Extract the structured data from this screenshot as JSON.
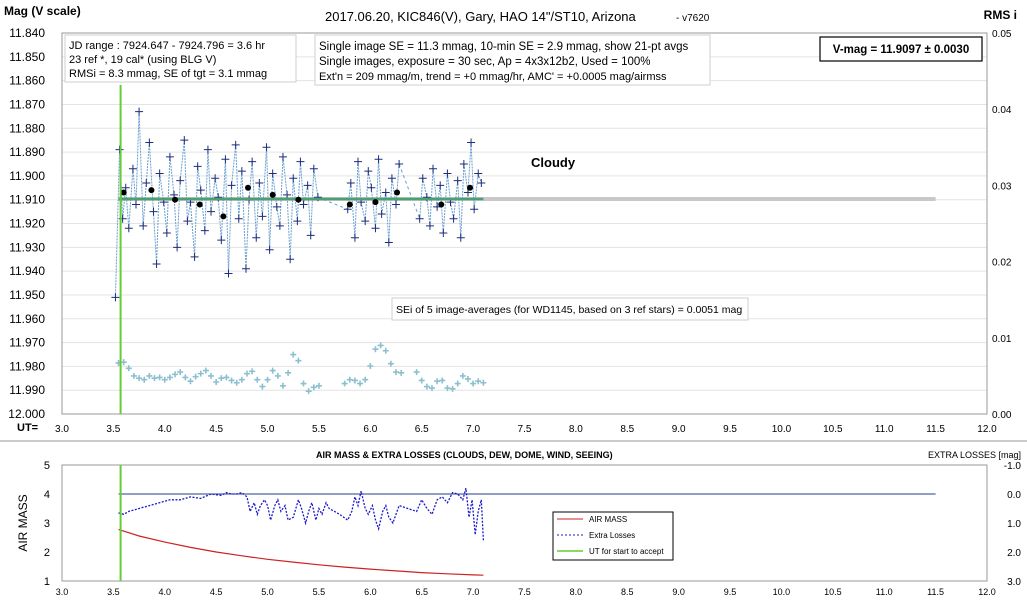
{
  "colors": {
    "grid": "#e3e3e3",
    "mag": "#1f2d7a",
    "avg": "#000000",
    "rms": "#8cc0d0",
    "mean_line": "#4aa070",
    "ref_line": "#c8c8c8",
    "airmass": "#cc2222",
    "losses": "#1a1acc",
    "accept": "#66cc33",
    "zero_line": "#1f3f8f"
  },
  "top": {
    "title": "2017.06.20,  KIC846(V),  Gary,  HAO 14\"/ST10, Arizona",
    "version": "- v7620",
    "y_title": "Mag (V scale)",
    "y2_title": "RMS i",
    "ut_label": "UT=",
    "x_ticks": [
      "3.0",
      "3.5",
      "4.0",
      "4.5",
      "5.0",
      "5.5",
      "6.0",
      "6.5",
      "7.0",
      "7.5",
      "8.0",
      "8.5",
      "9.0",
      "9.5",
      "10.0",
      "10.5",
      "11.0",
      "11.5",
      "12.0"
    ],
    "y_ticks": [
      "11.840",
      "11.850",
      "11.860",
      "11.870",
      "11.880",
      "11.890",
      "11.900",
      "11.910",
      "11.920",
      "11.930",
      "11.940",
      "11.950",
      "11.960",
      "11.970",
      "11.980",
      "11.990",
      "12.000"
    ],
    "y2_ticks": [
      "0.05",
      "0.04",
      "0.03",
      "0.02",
      "0.01",
      "0.00"
    ],
    "box1": [
      "JD range : 7924.647 - 7924.796 = 3.6 hr",
      "23 ref *, 19 cal* (using BLG V)",
      "RMSi = 8.3 mmag, SE of tgt = 3.1 mmag"
    ],
    "box2": [
      "Single image SE = 11.3 mmag, 10-min SE = 2.9 mmag, show  21-pt avgs",
      "Single images, exposure = 30 sec, Ap = 4x3x12b2, Used = 100%",
      "Ext'n = 209 mmag/m, trend = +0 mmag/hr, AMC' = +0.0005 mag/airmss"
    ],
    "vmag": "V-mag = 11.9097 ± 0.0030",
    "cloudy": "Cloudy",
    "sei": "SEi of 5 image-averages (for WD1145, based on 3 ref stars) = 0.0051 mag"
  },
  "bottom": {
    "title": "AIR MASS & EXTRA LOSSES (CLOUDS, DEW, DOME, WIND, SEEING)",
    "y_title": "AIR MASS",
    "y2_title": "EXTRA LOSSES [mag]",
    "x_ticks": [
      "3.0",
      "3.5",
      "4.0",
      "4.5",
      "5.0",
      "5.5",
      "6.0",
      "6.5",
      "7.0",
      "7.5",
      "8.0",
      "8.5",
      "9.0",
      "9.5",
      "10.0",
      "10.5",
      "11.0",
      "11.5",
      "12.0"
    ],
    "y_ticks": [
      "5",
      "4",
      "3",
      "2",
      "1"
    ],
    "y2_ticks": [
      "-1.0",
      "0.0",
      "1.0",
      "2.0",
      "3.0"
    ],
    "legend": [
      "AIR MASS",
      "Extra Losses",
      "UT for start to accept"
    ]
  },
  "chart_data": [
    {
      "type": "scatter",
      "title": "2017.06.20,  KIC846(V),  Gary,  HAO 14\"/ST10, Arizona",
      "xlabel": "UT=",
      "ylabel": "Mag (V scale)",
      "y2label": "RMS i",
      "xlim": [
        3.0,
        12.0
      ],
      "ylim": [
        12.0,
        11.84
      ],
      "y2lim": [
        0.0,
        0.05
      ],
      "mean_mag": 11.9097,
      "mean_line_x": [
        3.55,
        7.1
      ],
      "ref_line_x": [
        3.55,
        11.5
      ],
      "accept_ut": 3.57,
      "gaps": [
        [
          5.5,
          5.75
        ],
        [
          6.3,
          6.45
        ]
      ],
      "series": [
        {
          "name": "single images",
          "x": [
            3.52,
            3.56,
            3.59,
            3.62,
            3.65,
            3.69,
            3.72,
            3.75,
            3.79,
            3.82,
            3.85,
            3.89,
            3.92,
            3.95,
            3.99,
            4.02,
            4.05,
            4.09,
            4.12,
            4.15,
            4.19,
            4.22,
            4.25,
            4.29,
            4.32,
            4.35,
            4.39,
            4.42,
            4.45,
            4.49,
            4.52,
            4.55,
            4.59,
            4.62,
            4.65,
            4.69,
            4.72,
            4.75,
            4.79,
            4.82,
            4.85,
            4.89,
            4.92,
            4.95,
            4.99,
            5.02,
            5.05,
            5.09,
            5.12,
            5.15,
            5.19,
            5.22,
            5.25,
            5.29,
            5.32,
            5.35,
            5.39,
            5.42,
            5.45,
            5.49,
            5.78,
            5.81,
            5.85,
            5.88,
            5.91,
            5.95,
            5.98,
            6.01,
            6.05,
            6.08,
            6.11,
            6.15,
            6.18,
            6.21,
            6.25,
            6.28,
            6.48,
            6.51,
            6.55,
            6.58,
            6.61,
            6.65,
            6.68,
            6.71,
            6.75,
            6.78,
            6.81,
            6.85,
            6.88,
            6.91,
            6.95,
            6.98,
            7.01,
            7.05,
            7.08
          ],
          "y": [
            11.951,
            11.889,
            11.918,
            11.905,
            11.922,
            11.897,
            11.912,
            11.873,
            11.921,
            11.903,
            11.886,
            11.915,
            11.937,
            11.899,
            11.911,
            11.924,
            11.892,
            11.908,
            11.93,
            11.902,
            11.885,
            11.919,
            11.911,
            11.934,
            11.896,
            11.906,
            11.923,
            11.889,
            11.915,
            11.901,
            11.909,
            11.927,
            11.893,
            11.941,
            11.904,
            11.887,
            11.918,
            11.898,
            11.939,
            11.91,
            11.894,
            11.926,
            11.903,
            11.917,
            11.888,
            11.931,
            11.899,
            11.913,
            11.921,
            11.892,
            11.908,
            11.935,
            11.901,
            11.919,
            11.894,
            11.912,
            11.904,
            11.925,
            11.897,
            11.909,
            11.914,
            11.903,
            11.926,
            11.894,
            11.911,
            11.919,
            11.898,
            11.905,
            11.922,
            11.893,
            11.916,
            11.907,
            11.928,
            11.901,
            11.912,
            11.895,
            11.918,
            11.901,
            11.909,
            11.921,
            11.897,
            11.913,
            11.904,
            11.924,
            11.899,
            11.911,
            11.918,
            11.902,
            11.926,
            11.895,
            11.907,
            11.886,
            11.914,
            11.899,
            11.903
          ]
        },
        {
          "name": "21-pt avgs",
          "x": [
            3.6,
            3.87,
            4.1,
            4.34,
            4.57,
            4.81,
            5.05,
            5.3,
            5.8,
            6.05,
            6.26,
            6.69,
            6.97
          ],
          "y": [
            11.907,
            11.906,
            11.91,
            11.912,
            11.917,
            11.905,
            11.908,
            11.91,
            11.912,
            11.911,
            11.907,
            11.912,
            11.905
          ]
        },
        {
          "name": "RMS i",
          "x": [
            3.55,
            3.6,
            3.65,
            3.7,
            3.75,
            3.8,
            3.85,
            3.9,
            3.95,
            4.0,
            4.05,
            4.1,
            4.15,
            4.2,
            4.25,
            4.3,
            4.35,
            4.4,
            4.45,
            4.5,
            4.55,
            4.6,
            4.65,
            4.7,
            4.75,
            4.8,
            4.85,
            4.9,
            4.95,
            5.0,
            5.05,
            5.1,
            5.15,
            5.2,
            5.25,
            5.3,
            5.35,
            5.4,
            5.45,
            5.5,
            5.75,
            5.8,
            5.85,
            5.9,
            5.95,
            6.0,
            6.05,
            6.1,
            6.15,
            6.2,
            6.25,
            6.3,
            6.45,
            6.5,
            6.55,
            6.6,
            6.65,
            6.7,
            6.75,
            6.8,
            6.85,
            6.9,
            6.95,
            7.0,
            7.05,
            7.1
          ],
          "y": [
            0.0067,
            0.0068,
            0.006,
            0.005,
            0.0047,
            0.0045,
            0.005,
            0.0047,
            0.0048,
            0.0045,
            0.0048,
            0.0052,
            0.0055,
            0.0048,
            0.0043,
            0.0049,
            0.0053,
            0.0057,
            0.005,
            0.0042,
            0.0047,
            0.0048,
            0.0044,
            0.0041,
            0.0045,
            0.0053,
            0.0056,
            0.0045,
            0.0036,
            0.0045,
            0.0057,
            0.005,
            0.0037,
            0.0054,
            0.0078,
            0.007,
            0.004,
            0.003,
            0.0035,
            0.0037,
            0.004,
            0.0045,
            0.0044,
            0.004,
            0.0045,
            0.0063,
            0.0085,
            0.009,
            0.0083,
            0.0066,
            0.0055,
            0.0054,
            0.0055,
            0.0044,
            0.0036,
            0.0034,
            0.0043,
            0.0044,
            0.0034,
            0.0033,
            0.004,
            0.005,
            0.0046,
            0.004,
            0.0043,
            0.0041
          ]
        }
      ]
    },
    {
      "type": "line",
      "title": "AIR MASS & EXTRA LOSSES (CLOUDS, DEW, DOME, WIND, SEEING)",
      "ylabel": "AIR MASS",
      "y2label": "EXTRA LOSSES [mag]",
      "xlim": [
        3.0,
        12.0
      ],
      "ylim": [
        1,
        5
      ],
      "y2lim": [
        3.0,
        -1.0
      ],
      "zero_loss_x": [
        3.55,
        11.5
      ],
      "accept_ut": 3.57,
      "series": [
        {
          "name": "AIR MASS",
          "x": [
            3.55,
            3.75,
            4.0,
            4.25,
            4.5,
            4.75,
            5.0,
            5.25,
            5.5,
            5.75,
            6.0,
            6.25,
            6.5,
            6.75,
            7.0,
            7.1
          ],
          "y": [
            2.78,
            2.55,
            2.34,
            2.16,
            2.0,
            1.87,
            1.75,
            1.65,
            1.56,
            1.48,
            1.41,
            1.35,
            1.29,
            1.25,
            1.21,
            1.2
          ]
        },
        {
          "name": "Extra Losses",
          "x": [
            3.55,
            3.6,
            3.65,
            3.75,
            3.85,
            3.95,
            4.05,
            4.15,
            4.25,
            4.35,
            4.45,
            4.55,
            4.6,
            4.65,
            4.7,
            4.75,
            4.8,
            4.83,
            4.87,
            4.9,
            4.93,
            4.97,
            5.0,
            5.03,
            5.07,
            5.1,
            5.13,
            5.17,
            5.2,
            5.25,
            5.3,
            5.33,
            5.37,
            5.4,
            5.43,
            5.47,
            5.5,
            5.53,
            5.57,
            5.6,
            5.7,
            5.78,
            5.82,
            5.85,
            5.88,
            5.91,
            5.95,
            5.98,
            6.02,
            6.05,
            6.08,
            6.12,
            6.15,
            6.18,
            6.22,
            6.25,
            6.28,
            6.45,
            6.5,
            6.55,
            6.6,
            6.65,
            6.7,
            6.75,
            6.8,
            6.85,
            6.9,
            6.93,
            6.96,
            6.99,
            7.02,
            7.05,
            7.08,
            7.1
          ],
          "y": [
            0.65,
            0.7,
            0.6,
            0.5,
            0.4,
            0.3,
            0.2,
            0.2,
            0.1,
            0.15,
            0.0,
            0.05,
            -0.05,
            0.0,
            0.0,
            -0.05,
            0.1,
            0.6,
            0.3,
            0.7,
            0.4,
            0.2,
            0.4,
            0.9,
            0.4,
            0.2,
            0.6,
            0.4,
            0.9,
            0.8,
            0.2,
            0.5,
            1.0,
            0.6,
            0.3,
            0.9,
            0.5,
            0.7,
            0.3,
            0.5,
            0.7,
            0.9,
            0.6,
            0.1,
            0.4,
            -0.1,
            0.5,
            0.7,
            0.4,
            0.9,
            1.2,
            0.6,
            0.4,
            0.8,
            1.0,
            0.7,
            0.4,
            0.6,
            0.2,
            0.5,
            0.7,
            0.2,
            0.1,
            0.3,
            -0.05,
            0.0,
            0.2,
            -0.2,
            0.8,
            0.2,
            1.4,
            0.6,
            0.2,
            1.6
          ]
        }
      ]
    }
  ]
}
